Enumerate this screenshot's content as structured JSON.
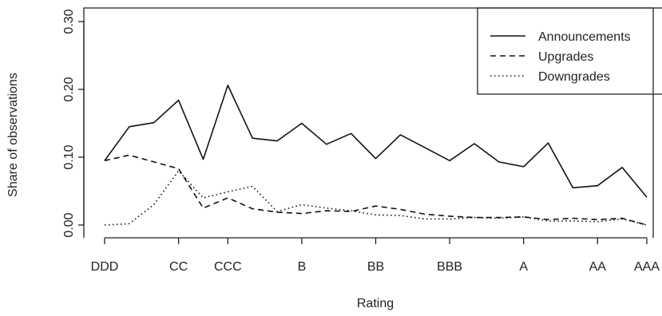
{
  "chart_data": {
    "type": "line",
    "title": "",
    "xlabel": "Rating",
    "ylabel": "Share of observations",
    "ylim": [
      0,
      0.3
    ],
    "yticks": [
      0.0,
      0.1,
      0.2,
      0.3
    ],
    "ytick_labels": [
      "0.00",
      "0.10",
      "0.20",
      "0.30"
    ],
    "x_range": [
      1,
      23
    ],
    "xtick_positions": [
      1,
      4,
      6,
      9,
      12,
      15,
      18,
      21,
      23
    ],
    "xtick_labels": [
      "DDD",
      "CC",
      "CCC",
      "B",
      "BB",
      "BBB",
      "A",
      "AA",
      "AAA"
    ],
    "grid": false,
    "legend_position": "top-right",
    "x": [
      1,
      2,
      3,
      4,
      5,
      6,
      7,
      8,
      9,
      10,
      11,
      12,
      13,
      14,
      15,
      16,
      17,
      18,
      19,
      20,
      21,
      22,
      23
    ],
    "series": [
      {
        "name": "Announcements",
        "line_style": "solid",
        "values": [
          0.095,
          0.145,
          0.151,
          0.184,
          0.097,
          0.206,
          0.128,
          0.124,
          0.15,
          0.119,
          0.135,
          0.098,
          0.133,
          0.114,
          0.095,
          0.12,
          0.093,
          0.086,
          0.121,
          0.055,
          0.058,
          0.085,
          0.041
        ]
      },
      {
        "name": "Upgrades",
        "line_style": "dashed",
        "values": [
          0.095,
          0.103,
          0.093,
          0.083,
          0.025,
          0.04,
          0.024,
          0.019,
          0.017,
          0.021,
          0.02,
          0.028,
          0.023,
          0.016,
          0.013,
          0.011,
          0.011,
          0.012,
          0.008,
          0.01,
          0.008,
          0.01,
          0.0
        ]
      },
      {
        "name": "Downgrades",
        "line_style": "dotted",
        "values": [
          0.0,
          0.002,
          0.03,
          0.08,
          0.04,
          0.049,
          0.057,
          0.02,
          0.03,
          0.025,
          0.021,
          0.015,
          0.014,
          0.009,
          0.009,
          0.011,
          0.01,
          0.012,
          0.006,
          0.006,
          0.005,
          0.009,
          0.0
        ]
      }
    ]
  }
}
